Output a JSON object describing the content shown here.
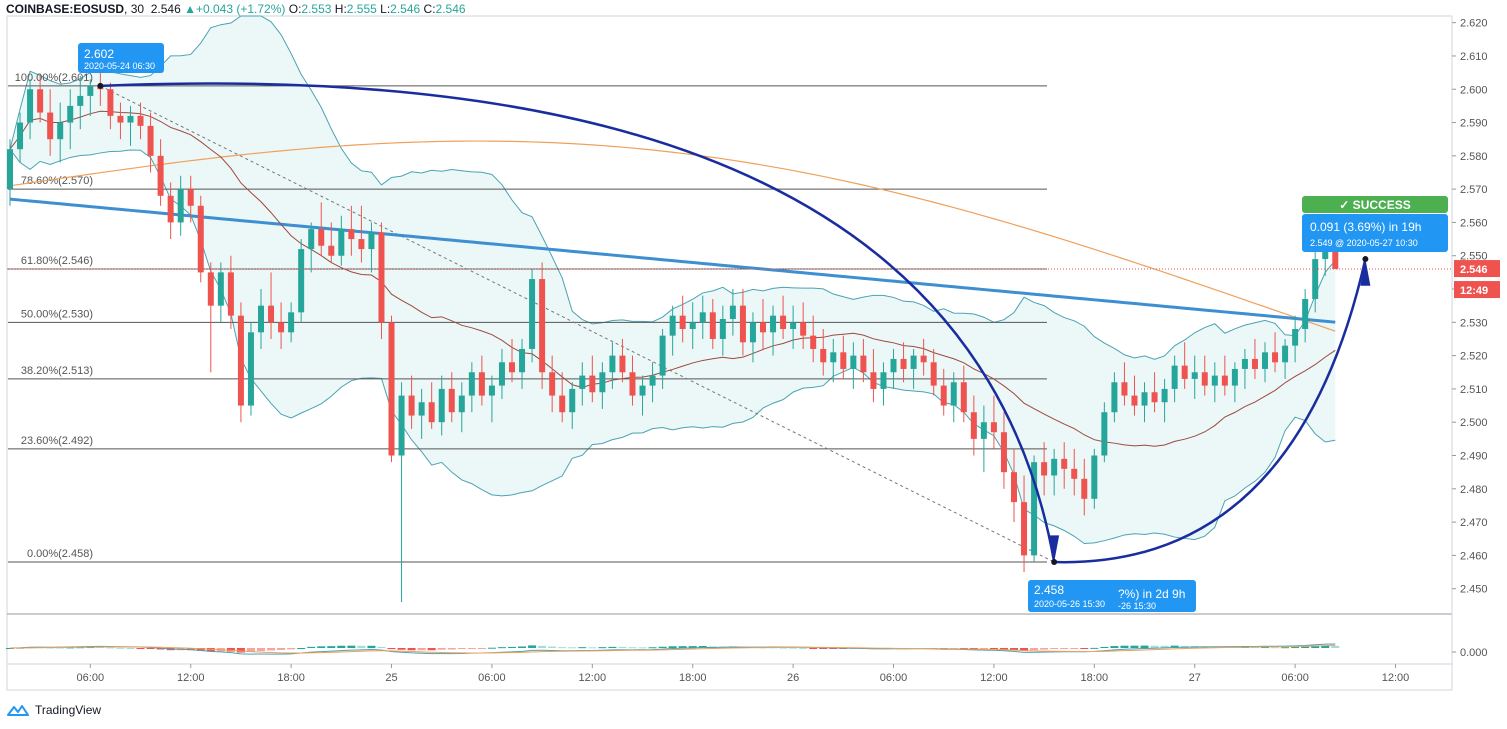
{
  "header": {
    "symbol": "COINBASE:EOSUSD",
    "interval": "30",
    "last": "2.546",
    "change": "+0.043 (+1.72%)",
    "open_label": "O:",
    "open": "2.553",
    "high_label": "H:",
    "high": "2.555",
    "low_label": "L:",
    "low": "2.546",
    "close_label": "C:",
    "close": "2.546"
  },
  "brand": {
    "name": "TradingView",
    "icon": "tradingview-logo-icon"
  },
  "colors": {
    "up": "#26a69a",
    "down": "#ef5350",
    "down_light": "#f5a5a3",
    "up_light": "#a8dbd5",
    "ma_blue": "#3d8fd1",
    "ma_orange": "#f0a05a",
    "ma_brown": "#9c4a3f",
    "band": "#4aa3b3",
    "arc": "#1a2d9e",
    "label_blue": "#2196f3",
    "success": "#4caf50"
  },
  "chart_data": {
    "type": "candlestick",
    "y_axis": {
      "range": [
        2.443,
        2.622
      ],
      "ticks": [
        "2.620",
        "2.610",
        "2.600",
        "2.590",
        "2.580",
        "2.570",
        "2.560",
        "2.550",
        "2.540",
        "2.530",
        "2.520",
        "2.510",
        "2.500",
        "2.490",
        "2.480",
        "2.470",
        "2.460",
        "2.450"
      ]
    },
    "x_axis": {
      "ticks": [
        {
          "label": "06:00",
          "i": 8
        },
        {
          "label": "12:00",
          "i": 18
        },
        {
          "label": "18:00",
          "i": 28
        },
        {
          "label": "25",
          "i": 38
        },
        {
          "label": "06:00",
          "i": 48
        },
        {
          "label": "12:00",
          "i": 58
        },
        {
          "label": "18:00",
          "i": 68
        },
        {
          "label": "26",
          "i": 78
        },
        {
          "label": "06:00",
          "i": 88
        },
        {
          "label": "12:00",
          "i": 98
        },
        {
          "label": "18:00",
          "i": 108
        },
        {
          "label": "27",
          "i": 118
        },
        {
          "label": "06:00",
          "i": 128
        },
        {
          "label": "12:00",
          "i": 138
        }
      ]
    },
    "price_labels": [
      {
        "text": "2.546",
        "color": "#ef5350",
        "value": 2.546
      },
      {
        "text": "12:49",
        "color": "#ef5350",
        "value": 2.542
      }
    ],
    "fib_levels": [
      {
        "label": "100.00%(2.601)",
        "value": 2.601
      },
      {
        "label": "78.60%(2.570)",
        "value": 2.57
      },
      {
        "label": "61.80%(2.546)",
        "value": 2.546
      },
      {
        "label": "50.00%(2.530)",
        "value": 2.53
      },
      {
        "label": "38.20%(2.513)",
        "value": 2.513
      },
      {
        "label": "23.60%(2.492)",
        "value": 2.492
      },
      {
        "label": "0.00%(2.458)",
        "value": 2.458
      }
    ],
    "annotations": [
      {
        "name": "high-label",
        "value": "2.602",
        "date": "2020-05-24 06:30"
      },
      {
        "name": "low-label",
        "value": "2.458",
        "date": "2020-05-26 15:30",
        "extra": "?%) in 2d 9h",
        "extra_date": "-26  15:30"
      },
      {
        "name": "success-label",
        "status": "SUCCESS",
        "text": "0.091 (3.69%) in 19h",
        "sub": "2.549 @ 2020-05-27  10:30"
      }
    ],
    "macd_axis": {
      "tick": "0.000"
    },
    "candles": [
      [
        2.57,
        2.585,
        2.565,
        2.582
      ],
      [
        2.582,
        2.593,
        2.578,
        2.59
      ],
      [
        2.59,
        2.603,
        2.585,
        2.6
      ],
      [
        2.6,
        2.604,
        2.59,
        2.593
      ],
      [
        2.593,
        2.6,
        2.58,
        2.585
      ],
      [
        2.585,
        2.596,
        2.578,
        2.59
      ],
      [
        2.59,
        2.6,
        2.582,
        2.595
      ],
      [
        2.595,
        2.604,
        2.588,
        2.598
      ],
      [
        2.598,
        2.603,
        2.592,
        2.601
      ],
      [
        2.601,
        2.605,
        2.595,
        2.6
      ],
      [
        2.6,
        2.602,
        2.588,
        2.592
      ],
      [
        2.592,
        2.596,
        2.585,
        2.59
      ],
      [
        2.59,
        2.595,
        2.583,
        2.592
      ],
      [
        2.592,
        2.596,
        2.585,
        2.589
      ],
      [
        2.589,
        2.593,
        2.575,
        2.58
      ],
      [
        2.58,
        2.585,
        2.565,
        2.568
      ],
      [
        2.568,
        2.572,
        2.555,
        2.56
      ],
      [
        2.56,
        2.574,
        2.556,
        2.57
      ],
      [
        2.57,
        2.574,
        2.56,
        2.565
      ],
      [
        2.565,
        2.568,
        2.542,
        2.545
      ],
      [
        2.545,
        2.548,
        2.515,
        2.535
      ],
      [
        2.535,
        2.548,
        2.53,
        2.545
      ],
      [
        2.545,
        2.55,
        2.528,
        2.532
      ],
      [
        2.532,
        2.536,
        2.5,
        2.505
      ],
      [
        2.505,
        2.53,
        2.502,
        2.527
      ],
      [
        2.527,
        2.54,
        2.522,
        2.535
      ],
      [
        2.535,
        2.545,
        2.525,
        2.53
      ],
      [
        2.53,
        2.536,
        2.522,
        2.527
      ],
      [
        2.527,
        2.536,
        2.524,
        2.533
      ],
      [
        2.533,
        2.555,
        2.53,
        2.552
      ],
      [
        2.552,
        2.56,
        2.545,
        2.558
      ],
      [
        2.558,
        2.566,
        2.55,
        2.553
      ],
      [
        2.553,
        2.56,
        2.548,
        2.55
      ],
      [
        2.55,
        2.562,
        2.547,
        2.558
      ],
      [
        2.558,
        2.565,
        2.55,
        2.555
      ],
      [
        2.555,
        2.565,
        2.548,
        2.552
      ],
      [
        2.552,
        2.56,
        2.545,
        2.557
      ],
      [
        2.557,
        2.56,
        2.525,
        2.53
      ],
      [
        2.53,
        2.532,
        2.488,
        2.49
      ],
      [
        2.49,
        2.512,
        2.446,
        2.508
      ],
      [
        2.508,
        2.514,
        2.498,
        2.502
      ],
      [
        2.502,
        2.51,
        2.495,
        2.506
      ],
      [
        2.506,
        2.512,
        2.498,
        2.5
      ],
      [
        2.5,
        2.514,
        2.496,
        2.51
      ],
      [
        2.51,
        2.515,
        2.5,
        2.503
      ],
      [
        2.503,
        2.512,
        2.497,
        2.508
      ],
      [
        2.508,
        2.518,
        2.503,
        2.515
      ],
      [
        2.515,
        2.52,
        2.505,
        2.508
      ],
      [
        2.508,
        2.514,
        2.5,
        2.511
      ],
      [
        2.511,
        2.522,
        2.507,
        2.518
      ],
      [
        2.518,
        2.525,
        2.512,
        2.515
      ],
      [
        2.515,
        2.525,
        2.51,
        2.522
      ],
      [
        2.522,
        2.546,
        2.518,
        2.543
      ],
      [
        2.543,
        2.548,
        2.51,
        2.515
      ],
      [
        2.515,
        2.52,
        2.503,
        2.508
      ],
      [
        2.508,
        2.515,
        2.5,
        2.503
      ],
      [
        2.503,
        2.512,
        2.498,
        2.51
      ],
      [
        2.51,
        2.518,
        2.505,
        2.514
      ],
      [
        2.514,
        2.52,
        2.506,
        2.509
      ],
      [
        2.509,
        2.518,
        2.504,
        2.515
      ],
      [
        2.515,
        2.524,
        2.51,
        2.52
      ],
      [
        2.52,
        2.525,
        2.512,
        2.515
      ],
      [
        2.515,
        2.52,
        2.505,
        2.508
      ],
      [
        2.508,
        2.514,
        2.502,
        2.511
      ],
      [
        2.511,
        2.518,
        2.506,
        2.514
      ],
      [
        2.514,
        2.528,
        2.51,
        2.526
      ],
      [
        2.526,
        2.535,
        2.52,
        2.532
      ],
      [
        2.532,
        2.538,
        2.524,
        2.528
      ],
      [
        2.528,
        2.536,
        2.522,
        2.53
      ],
      [
        2.53,
        2.538,
        2.525,
        2.533
      ],
      [
        2.533,
        2.537,
        2.522,
        2.525
      ],
      [
        2.525,
        2.535,
        2.52,
        2.531
      ],
      [
        2.531,
        2.54,
        2.526,
        2.535
      ],
      [
        2.535,
        2.54,
        2.52,
        2.524
      ],
      [
        2.524,
        2.533,
        2.518,
        2.53
      ],
      [
        2.53,
        2.537,
        2.522,
        2.527
      ],
      [
        2.527,
        2.535,
        2.52,
        2.532
      ],
      [
        2.532,
        2.538,
        2.525,
        2.528
      ],
      [
        2.528,
        2.535,
        2.522,
        2.53
      ],
      [
        2.53,
        2.536,
        2.522,
        2.526
      ],
      [
        2.526,
        2.532,
        2.518,
        2.522
      ],
      [
        2.522,
        2.528,
        2.514,
        2.518
      ],
      [
        2.518,
        2.525,
        2.512,
        2.521
      ],
      [
        2.521,
        2.526,
        2.513,
        2.516
      ],
      [
        2.516,
        2.524,
        2.51,
        2.52
      ],
      [
        2.52,
        2.525,
        2.512,
        2.515
      ],
      [
        2.515,
        2.522,
        2.506,
        2.51
      ],
      [
        2.51,
        2.518,
        2.505,
        2.515
      ],
      [
        2.515,
        2.522,
        2.51,
        2.519
      ],
      [
        2.519,
        2.524,
        2.512,
        2.516
      ],
      [
        2.516,
        2.522,
        2.51,
        2.52
      ],
      [
        2.52,
        2.525,
        2.514,
        2.518
      ],
      [
        2.518,
        2.522,
        2.508,
        2.511
      ],
      [
        2.511,
        2.516,
        2.502,
        2.505
      ],
      [
        2.505,
        2.515,
        2.5,
        2.512
      ],
      [
        2.512,
        2.517,
        2.5,
        2.503
      ],
      [
        2.503,
        2.508,
        2.49,
        2.495
      ],
      [
        2.495,
        2.505,
        2.485,
        2.5
      ],
      [
        2.5,
        2.508,
        2.492,
        2.497
      ],
      [
        2.497,
        2.503,
        2.48,
        2.485
      ],
      [
        2.485,
        2.492,
        2.47,
        2.476
      ],
      [
        2.476,
        2.484,
        2.455,
        2.46
      ],
      [
        2.46,
        2.49,
        2.458,
        2.488
      ],
      [
        2.488,
        2.494,
        2.478,
        2.484
      ],
      [
        2.484,
        2.492,
        2.478,
        2.489
      ],
      [
        2.489,
        2.494,
        2.48,
        2.486
      ],
      [
        2.486,
        2.492,
        2.478,
        2.483
      ],
      [
        2.483,
        2.489,
        2.472,
        2.477
      ],
      [
        2.477,
        2.492,
        2.474,
        2.49
      ],
      [
        2.49,
        2.506,
        2.488,
        2.503
      ],
      [
        2.503,
        2.515,
        2.5,
        2.512
      ],
      [
        2.512,
        2.518,
        2.505,
        2.508
      ],
      [
        2.508,
        2.514,
        2.502,
        2.505
      ],
      [
        2.505,
        2.512,
        2.5,
        2.509
      ],
      [
        2.509,
        2.515,
        2.503,
        2.506
      ],
      [
        2.506,
        2.513,
        2.5,
        2.51
      ],
      [
        2.51,
        2.52,
        2.506,
        2.517
      ],
      [
        2.517,
        2.524,
        2.51,
        2.513
      ],
      [
        2.513,
        2.52,
        2.507,
        2.515
      ],
      [
        2.515,
        2.52,
        2.508,
        2.511
      ],
      [
        2.511,
        2.518,
        2.506,
        2.514
      ],
      [
        2.514,
        2.52,
        2.508,
        2.511
      ],
      [
        2.511,
        2.518,
        2.506,
        2.516
      ],
      [
        2.516,
        2.522,
        2.51,
        2.519
      ],
      [
        2.519,
        2.525,
        2.513,
        2.516
      ],
      [
        2.516,
        2.524,
        2.512,
        2.521
      ],
      [
        2.521,
        2.527,
        2.515,
        2.518
      ],
      [
        2.518,
        2.525,
        2.513,
        2.523
      ],
      [
        2.523,
        2.532,
        2.518,
        2.528
      ],
      [
        2.528,
        2.54,
        2.524,
        2.537
      ],
      [
        2.537,
        2.552,
        2.533,
        2.549
      ],
      [
        2.549,
        2.555,
        2.544,
        2.553
      ],
      [
        2.553,
        2.555,
        2.546,
        2.546
      ]
    ]
  }
}
